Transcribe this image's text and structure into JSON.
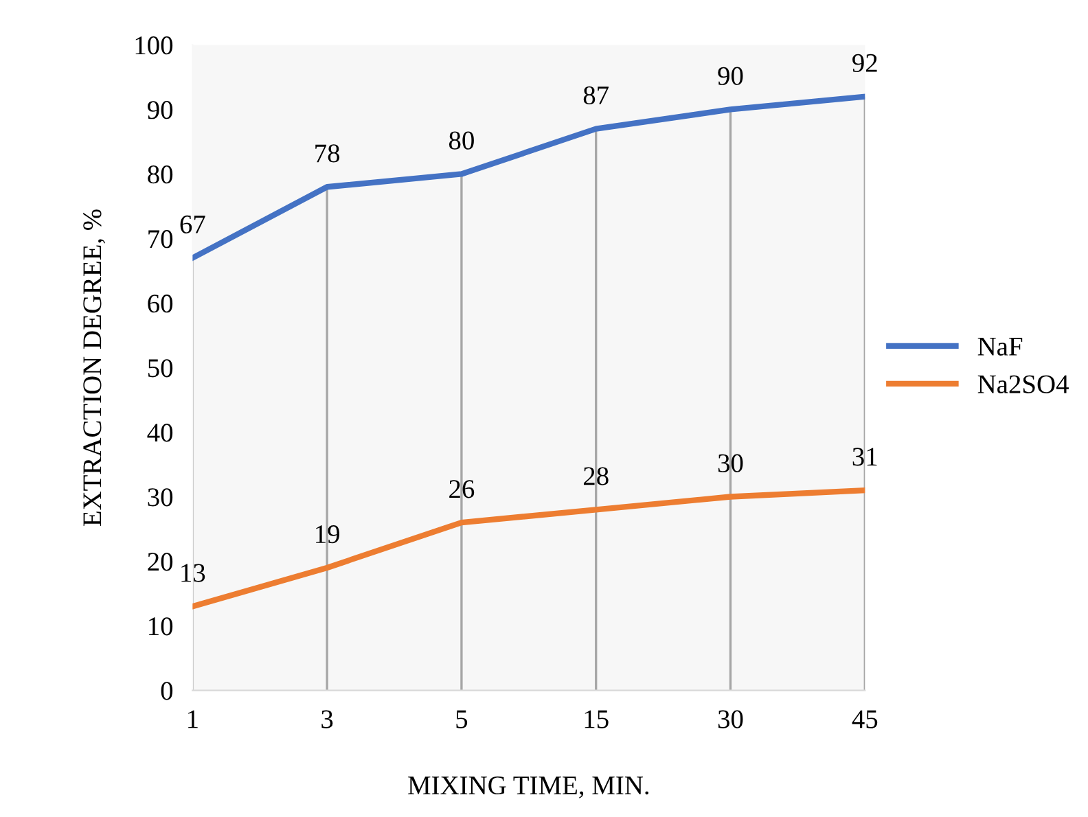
{
  "chart_data": {
    "type": "line",
    "xlabel": "MIXING TIME, MIN.",
    "ylabel": "EXTRACTION DEGREE, %",
    "categories": [
      "1",
      "3",
      "5",
      "15",
      "30",
      "45"
    ],
    "series": [
      {
        "name": "NaF",
        "color": "#4472c4",
        "values": [
          67,
          78,
          80,
          87,
          90,
          92
        ]
      },
      {
        "name": "Na2SO4",
        "color": "#ed7d31",
        "values": [
          13,
          19,
          26,
          28,
          30,
          31
        ]
      }
    ],
    "ylim": [
      0,
      100
    ],
    "yticks": [
      0,
      10,
      20,
      30,
      40,
      50,
      60,
      70,
      80,
      90,
      100
    ],
    "grid": "x",
    "legend": "right",
    "data_labels": true,
    "marker": "none",
    "line_style": "solid"
  }
}
